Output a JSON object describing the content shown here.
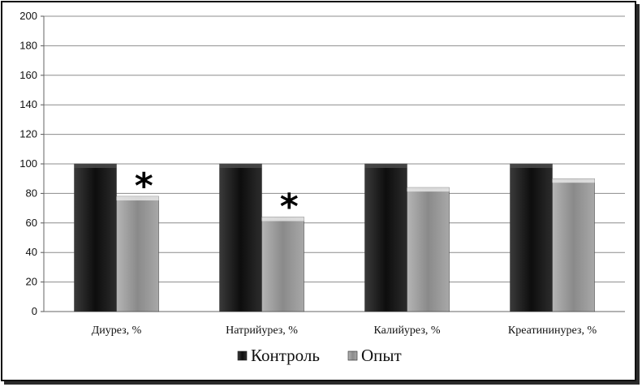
{
  "chart_data": {
    "type": "bar",
    "title": "",
    "xlabel": "",
    "ylabel": "",
    "ylim": [
      0,
      200
    ],
    "yticks": [
      0,
      20,
      40,
      60,
      80,
      100,
      120,
      140,
      160,
      180,
      200
    ],
    "grid": true,
    "legend_position": "bottom",
    "categories": [
      "Диурез, %",
      "Натрийурез, %",
      "Калийурез, %",
      "Креатининурез, %"
    ],
    "series": [
      {
        "name": "Контроль",
        "values": [
          100,
          100,
          100,
          100
        ],
        "color": "#1a1a1a"
      },
      {
        "name": "Опыт",
        "values": [
          78,
          64,
          84,
          90
        ],
        "color": "#9e9e9e"
      }
    ],
    "annotations": [
      {
        "text": "*",
        "category_index": 0,
        "series_index": 1
      },
      {
        "text": "*",
        "category_index": 1,
        "series_index": 1
      }
    ]
  }
}
